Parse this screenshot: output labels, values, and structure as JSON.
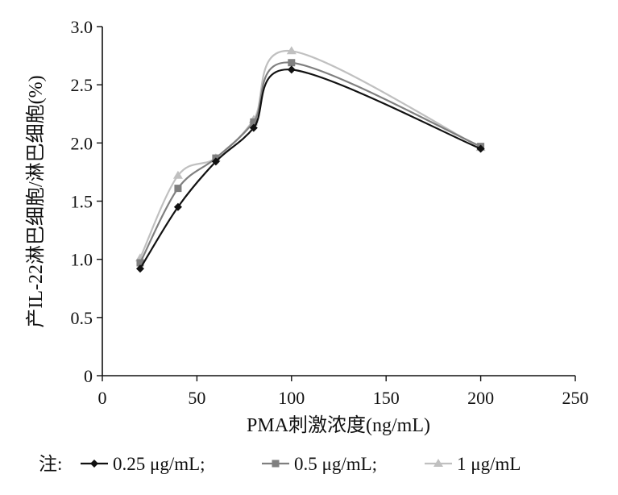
{
  "chart_data": {
    "type": "line",
    "title": "",
    "xlabel": "PMA刺激浓度(ng/mL)",
    "ylabel": "产IL-22淋巴细胞/淋巴细胞(%)",
    "xlim": [
      0,
      250
    ],
    "ylim": [
      0,
      3.0
    ],
    "xticks": [
      "0",
      "50",
      "100",
      "150",
      "200",
      "250"
    ],
    "yticks": [
      "0",
      "0.5",
      "1.0",
      "1.5",
      "2.0",
      "2.5",
      "3.0"
    ],
    "x": [
      20,
      40,
      60,
      80,
      100,
      200
    ],
    "grid": false,
    "legend_position": "bottom",
    "series": [
      {
        "name": "0.25 μg/mL",
        "color": "#111111",
        "marker": "diamond",
        "values": [
          0.92,
          1.45,
          1.84,
          2.13,
          2.63,
          1.95
        ]
      },
      {
        "name": "0.5 μg/mL",
        "color": "#7f7f7f",
        "marker": "square",
        "values": [
          0.97,
          1.61,
          1.87,
          2.18,
          2.69,
          1.97
        ]
      },
      {
        "name": "1 μg/mL",
        "color": "#c0c0c0",
        "marker": "triangle",
        "values": [
          1.01,
          1.72,
          1.87,
          2.2,
          2.79,
          1.96
        ]
      }
    ]
  },
  "legend": {
    "prefix": "注:",
    "items": [
      "0.25 μg/mL;",
      "0.5 μg/mL;",
      "1 μg/mL"
    ]
  }
}
